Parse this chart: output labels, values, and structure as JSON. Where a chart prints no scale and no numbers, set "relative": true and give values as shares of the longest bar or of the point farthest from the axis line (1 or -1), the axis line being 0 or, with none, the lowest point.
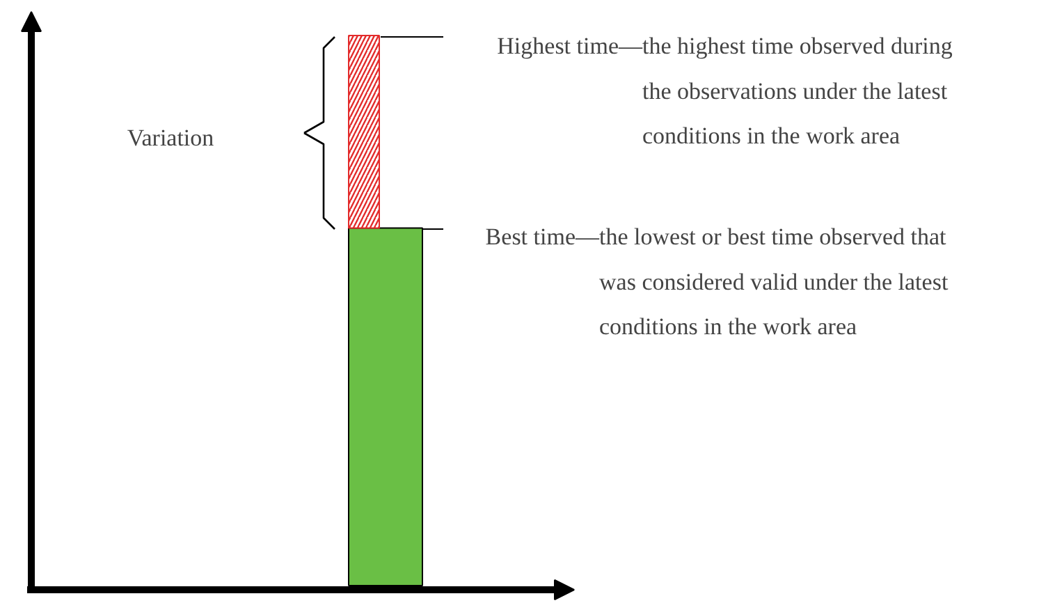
{
  "chart_data": {
    "type": "bar",
    "relative": true,
    "stacked": true,
    "categories": [
      null
    ],
    "series": [
      {
        "color": "#6abf45",
        "values": [
          0.65
        ]
      },
      {
        "color": "#e32b2b",
        "values": [
          0.35
        ]
      }
    ],
    "annotations": [
      "Variation",
      "Highest time—the highest time observed during\nthe observations under the latest\nconditions in the work area",
      "Best time—the lowest or best time observed that\nwas considered valid under the latest\nconditions in the work area"
    ]
  }
}
